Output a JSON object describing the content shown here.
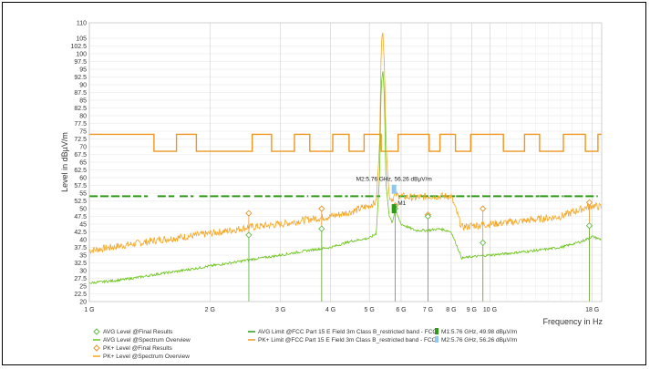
{
  "chart_data": {
    "type": "line",
    "xlabel": "Frequency in Hz",
    "ylabel": "Level in dBµV/m",
    "xscale": "log",
    "xlim": [
      1,
      19
    ],
    "ylim": [
      20,
      110
    ],
    "grid": true,
    "yticks": [
      20,
      22.5,
      25,
      27.5,
      30,
      32.5,
      35,
      37.5,
      40,
      42.5,
      45,
      47.5,
      50,
      52.5,
      55,
      57.5,
      60,
      62.5,
      65,
      67.5,
      70,
      72.5,
      75,
      77.5,
      80,
      82.5,
      85,
      87.5,
      90,
      92.5,
      95,
      97.5,
      100,
      102.5,
      105,
      110
    ],
    "xticks": [
      {
        "v": 1,
        "label": "1 G"
      },
      {
        "v": 2,
        "label": "2 G"
      },
      {
        "v": 3,
        "label": "3 G"
      },
      {
        "v": 4,
        "label": "4 G"
      },
      {
        "v": 5,
        "label": "5 G"
      },
      {
        "v": 6,
        "label": "6 G"
      },
      {
        "v": 7,
        "label": "7 G"
      },
      {
        "v": 8,
        "label": "8 G"
      },
      {
        "v": 9,
        "label": "9 G"
      },
      {
        "v": 10,
        "label": "10 G"
      },
      {
        "v": 18,
        "label": "18 G"
      }
    ],
    "series": [
      {
        "name": "PK+ Level @Spectrum Overview",
        "color": "#f5a623",
        "noise": 1.2,
        "x": [
          1,
          1.2,
          1.5,
          2,
          2.5,
          3,
          3.5,
          4,
          4.5,
          5,
          5.2,
          5.3,
          5.35,
          5.4,
          5.45,
          5.5,
          5.6,
          5.7,
          5.8,
          6,
          6.5,
          7,
          7.5,
          8,
          8.5,
          9,
          10,
          12,
          15,
          17,
          18,
          19
        ],
        "y": [
          36.5,
          38,
          40,
          42,
          44,
          45,
          46.5,
          47.5,
          49,
          51,
          52,
          70,
          102,
          107,
          98,
          72,
          54,
          53,
          54.5,
          54,
          53.5,
          54,
          54,
          54,
          44,
          44.5,
          45,
          46,
          47.5,
          50,
          51,
          50.5
        ]
      },
      {
        "name": "AVG Level @Spectrum Overview",
        "color": "#6ac31a",
        "noise": 0.4,
        "x": [
          1,
          1.2,
          1.5,
          2,
          2.5,
          3,
          3.5,
          4,
          4.5,
          5,
          5.2,
          5.3,
          5.35,
          5.4,
          5.45,
          5.5,
          5.6,
          5.7,
          5.8,
          6,
          6.5,
          7,
          7.5,
          8,
          8.5,
          9,
          10,
          12,
          15,
          17,
          18,
          19
        ],
        "y": [
          26,
          27,
          29,
          31.5,
          33.5,
          35,
          36.5,
          37.5,
          39.5,
          40.5,
          42,
          60,
          90,
          95,
          86,
          58,
          48,
          45.5,
          49.5,
          45,
          43,
          43,
          43.5,
          42.5,
          34,
          34.5,
          35,
          36,
          37.5,
          39.5,
          41,
          40
        ]
      },
      {
        "name": "PK+ Limit @FCC Part 15 E Field 3m Class B_restricted band - FCC",
        "color": "#f0961e",
        "noise": 0,
        "x": [
          1,
          1.45,
          1.45,
          1.65,
          1.65,
          1.85,
          1.85,
          2.55,
          2.55,
          2.85,
          2.85,
          3.25,
          3.25,
          3.55,
          3.55,
          4.05,
          4.05,
          4.45,
          4.45,
          4.85,
          4.85,
          5.35,
          5.35,
          5.9,
          5.9,
          7.05,
          7.05,
          7.5,
          7.5,
          8.2,
          8.2,
          8.95,
          8.95,
          10.8,
          10.8,
          12.2,
          12.2,
          13.3,
          13.3,
          15.25,
          15.25,
          17.3,
          17.3,
          18.6,
          18.6,
          19
        ],
        "y": [
          74,
          74,
          68.5,
          68.5,
          74,
          74,
          68.5,
          68.5,
          74,
          74,
          68.5,
          68.5,
          74,
          74,
          68.5,
          68.5,
          74,
          74,
          68.5,
          68.5,
          74,
          74,
          68.5,
          68.5,
          74,
          74,
          68.5,
          68.5,
          74,
          74,
          68.5,
          68.5,
          74,
          74,
          68.5,
          68.5,
          74,
          74,
          68.5,
          68.5,
          74,
          74,
          68.5,
          68.5,
          74,
          74
        ]
      }
    ],
    "avg_limit": {
      "name": "AVG Limit @FCC Part 15 E Field 3m Class B_restricted band - FCC",
      "color": "#2e9a17",
      "y": 54,
      "segments": [
        [
          1,
          1.4
        ],
        [
          1.48,
          1.63
        ],
        [
          1.68,
          1.82
        ],
        [
          1.88,
          2.52
        ],
        [
          2.58,
          2.83
        ],
        [
          2.88,
          3.22
        ],
        [
          3.28,
          3.52
        ],
        [
          3.58,
          4.02
        ],
        [
          4.08,
          4.42
        ],
        [
          4.48,
          4.82
        ],
        [
          4.88,
          5.32
        ],
        [
          5.92,
          7.02
        ],
        [
          7.08,
          7.47
        ],
        [
          7.53,
          8.17
        ],
        [
          8.23,
          8.92
        ],
        [
          8.98,
          10.78
        ],
        [
          10.82,
          12.18
        ],
        [
          12.22,
          13.28
        ],
        [
          13.32,
          15.22
        ],
        [
          15.28,
          17.28
        ],
        [
          17.32,
          18.58
        ]
      ]
    },
    "final_results": {
      "pk": {
        "name": "PK+ Level @Final Results",
        "color": "#e8932d",
        "x": [
          2.5,
          3.8,
          5.8,
          7.0,
          9.6,
          17.7
        ],
        "y": [
          48.5,
          50,
          51,
          48,
          50,
          52
        ]
      },
      "avg": {
        "name": "AVG Level @Final Results",
        "color": "#66b84a",
        "x": [
          2.5,
          3.8,
          5.8,
          7.0,
          9.6,
          17.7
        ],
        "y": [
          41.5,
          43.5,
          50,
          47.5,
          39,
          44.5
        ]
      }
    },
    "markers": [
      {
        "label": "M1",
        "legend": "M1:5.76 GHz, 49.98 dBµV/m",
        "x": 5.76,
        "y": 49.98,
        "color": "#2e9a17"
      },
      {
        "label": "M2",
        "legend": "M2:5.76 GHz, 56.26 dBµV/m",
        "x": 5.76,
        "y": 56.26,
        "color": "#8ec8ee"
      }
    ],
    "annotation": "M2:5.76 GHz, 56.26 dBµV/m"
  }
}
